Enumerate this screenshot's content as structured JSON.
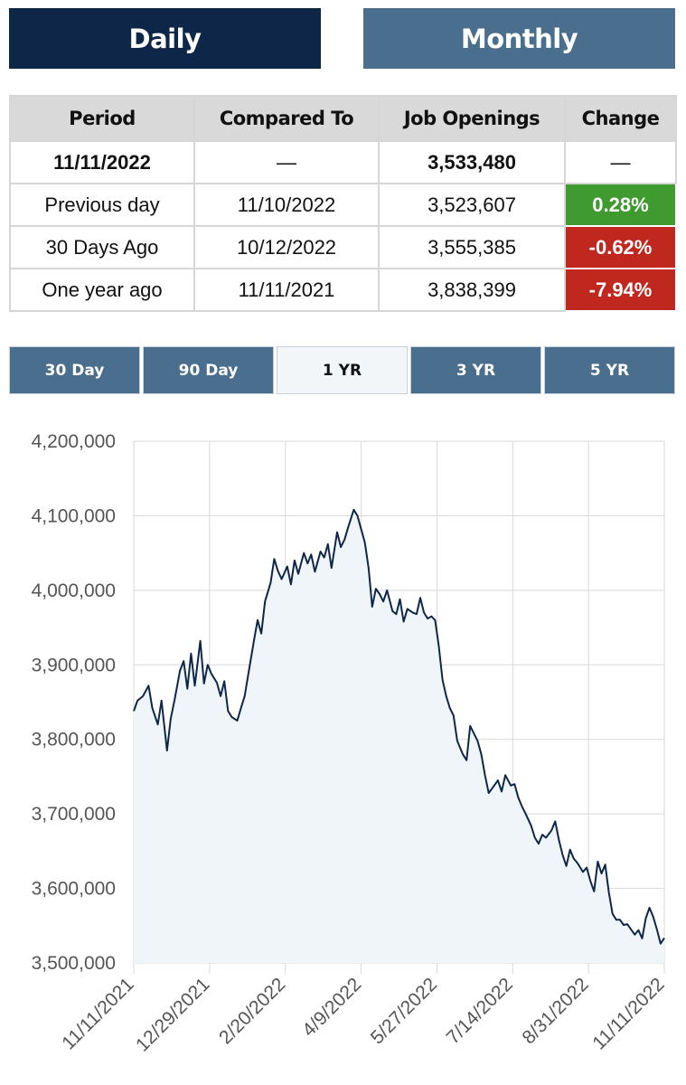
{
  "tabs": {
    "daily": "Daily",
    "monthly": "Monthly"
  },
  "table": {
    "headers": [
      "Period",
      "Compared To",
      "Job Openings",
      "Change"
    ],
    "rows": [
      [
        "11/11/2022",
        "—",
        "3,533,480",
        "—"
      ],
      [
        "Previous day",
        "11/10/2022",
        "3,523,607",
        "0.28%"
      ],
      [
        "30 Days Ago",
        "10/12/2022",
        "3,555,385",
        "-0.62%"
      ],
      [
        "One year ago",
        "11/11/2021",
        "3,838,399",
        "-7.94%"
      ]
    ]
  },
  "ranges": [
    "30 Day",
    "90 Day",
    "1 YR",
    "3 YR",
    "5 YR"
  ],
  "active_range": "1 YR",
  "colors": {
    "positive": "#3f9a2f",
    "negative": "#c0271f",
    "line": "#0e2749",
    "fill": "#eff5f9"
  },
  "chart_data": {
    "type": "area",
    "title": "",
    "xlabel": "",
    "ylabel": "",
    "ylim": [
      3500000,
      4200000
    ],
    "y_ticks": [
      "3,500,000",
      "3,600,000",
      "3,700,000",
      "3,800,000",
      "3,900,000",
      "4,000,000",
      "4,100,000",
      "4,200,000"
    ],
    "y_tick_values": [
      3500000,
      3600000,
      3700000,
      3800000,
      3900000,
      4000000,
      4100000,
      4200000
    ],
    "x_ticks": [
      "11/11/2021",
      "12/29/2021",
      "2/20/2022",
      "4/9/2022",
      "5/27/2022",
      "7/14/2022",
      "8/31/2022",
      "11/11/2022"
    ],
    "grid": true,
    "series": [
      {
        "values": [
          [
            0,
            3838000
          ],
          [
            2,
            3852000
          ],
          [
            5,
            3858000
          ],
          [
            8,
            3872000
          ],
          [
            10,
            3842000
          ],
          [
            13,
            3820000
          ],
          [
            15,
            3852000
          ],
          [
            18,
            3785000
          ],
          [
            20,
            3828000
          ],
          [
            22,
            3852000
          ],
          [
            25,
            3892000
          ],
          [
            27,
            3905000
          ],
          [
            29,
            3868000
          ],
          [
            31,
            3915000
          ],
          [
            33,
            3872000
          ],
          [
            36,
            3932000
          ],
          [
            38,
            3875000
          ],
          [
            40,
            3900000
          ],
          [
            42,
            3888000
          ],
          [
            45,
            3876000
          ],
          [
            47,
            3858000
          ],
          [
            49,
            3878000
          ],
          [
            51,
            3838000
          ],
          [
            53,
            3830000
          ],
          [
            56,
            3825000
          ],
          [
            58,
            3842000
          ],
          [
            60,
            3858000
          ],
          [
            62,
            3888000
          ],
          [
            65,
            3932000
          ],
          [
            67,
            3960000
          ],
          [
            69,
            3942000
          ],
          [
            71,
            3985000
          ],
          [
            74,
            4010000
          ],
          [
            76,
            4042000
          ],
          [
            78,
            4026000
          ],
          [
            80,
            4015000
          ],
          [
            83,
            4032000
          ],
          [
            85,
            4008000
          ],
          [
            87,
            4040000
          ],
          [
            89,
            4022000
          ],
          [
            92,
            4050000
          ],
          [
            94,
            4036000
          ],
          [
            96,
            4048000
          ],
          [
            98,
            4025000
          ],
          [
            101,
            4052000
          ],
          [
            103,
            4044000
          ],
          [
            105,
            4062000
          ],
          [
            107,
            4030000
          ],
          [
            110,
            4078000
          ],
          [
            112,
            4058000
          ],
          [
            114,
            4068000
          ],
          [
            116,
            4085000
          ],
          [
            119,
            4108000
          ],
          [
            121,
            4100000
          ],
          [
            123,
            4082000
          ],
          [
            125,
            4064000
          ],
          [
            127,
            4030000
          ],
          [
            129,
            3978000
          ],
          [
            131,
            4002000
          ],
          [
            133,
            3995000
          ],
          [
            135,
            3985000
          ],
          [
            137,
            4000000
          ],
          [
            140,
            3972000
          ],
          [
            142,
            3968000
          ],
          [
            144,
            3988000
          ],
          [
            146,
            3958000
          ],
          [
            148,
            3975000
          ],
          [
            151,
            3970000
          ],
          [
            153,
            3968000
          ],
          [
            155,
            3990000
          ],
          [
            157,
            3970000
          ],
          [
            159,
            3962000
          ],
          [
            161,
            3965000
          ],
          [
            163,
            3960000
          ],
          [
            165,
            3925000
          ],
          [
            167,
            3880000
          ],
          [
            169,
            3858000
          ],
          [
            171,
            3842000
          ],
          [
            173,
            3832000
          ],
          [
            175,
            3798000
          ],
          [
            178,
            3780000
          ],
          [
            180,
            3772000
          ],
          [
            182,
            3818000
          ],
          [
            184,
            3808000
          ],
          [
            186,
            3798000
          ],
          [
            188,
            3780000
          ],
          [
            190,
            3752000
          ],
          [
            192,
            3728000
          ],
          [
            195,
            3738000
          ],
          [
            197,
            3745000
          ],
          [
            199,
            3730000
          ],
          [
            201,
            3752000
          ],
          [
            204,
            3738000
          ],
          [
            206,
            3740000
          ],
          [
            208,
            3722000
          ],
          [
            210,
            3710000
          ],
          [
            212,
            3700000
          ],
          [
            215,
            3684000
          ],
          [
            217,
            3668000
          ],
          [
            219,
            3660000
          ],
          [
            221,
            3672000
          ],
          [
            223,
            3668000
          ],
          [
            226,
            3678000
          ],
          [
            228,
            3690000
          ],
          [
            230,
            3665000
          ],
          [
            232,
            3645000
          ],
          [
            234,
            3630000
          ],
          [
            236,
            3652000
          ],
          [
            238,
            3640000
          ],
          [
            240,
            3634000
          ],
          [
            243,
            3622000
          ],
          [
            245,
            3628000
          ],
          [
            247,
            3610000
          ],
          [
            249,
            3596000
          ],
          [
            251,
            3636000
          ],
          [
            253,
            3620000
          ],
          [
            255,
            3632000
          ],
          [
            257,
            3595000
          ],
          [
            259,
            3566000
          ],
          [
            261,
            3558000
          ],
          [
            263,
            3558000
          ],
          [
            265,
            3551000
          ],
          [
            267,
            3552000
          ],
          [
            269,
            3545000
          ],
          [
            271,
            3538000
          ],
          [
            273,
            3544000
          ],
          [
            275,
            3533000
          ],
          [
            277,
            3560000
          ],
          [
            279,
            3574000
          ],
          [
            281,
            3562000
          ],
          [
            283,
            3545000
          ],
          [
            285,
            3526000
          ],
          [
            287,
            3533480
          ]
        ]
      }
    ]
  }
}
